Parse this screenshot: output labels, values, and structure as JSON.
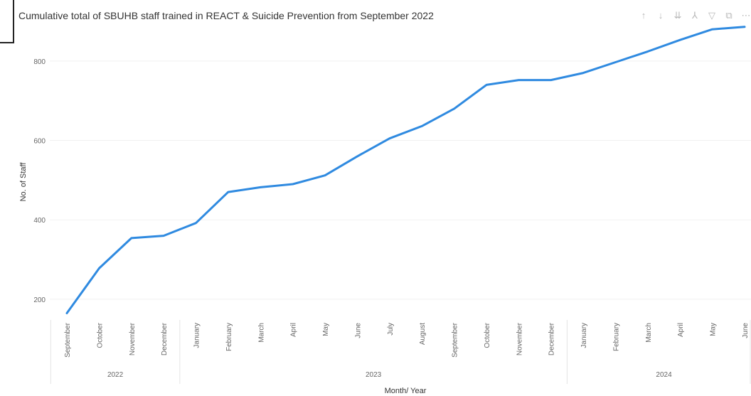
{
  "toolbar": {
    "icons": [
      "sort-ascending-icon",
      "sort-descending-icon",
      "drill-down-icon",
      "expand-hierarchy-icon",
      "filter-icon",
      "focus-mode-icon",
      "more-options-icon"
    ],
    "glyphs": [
      "↑",
      "↓",
      "⇊",
      "⅄",
      "▽",
      "⧉",
      "⋯"
    ]
  },
  "chart_data": {
    "type": "line",
    "title": "Cumulative total of SBUHB staff trained in REACT & Suicide Prevention from September 2022",
    "xlabel": "Month/ Year",
    "ylabel": "No. of Staff",
    "categories": [
      "September",
      "October",
      "November",
      "December",
      "January",
      "February",
      "March",
      "April",
      "May",
      "June",
      "July",
      "August",
      "September",
      "October",
      "November",
      "December",
      "January",
      "February",
      "March",
      "April",
      "May",
      "June"
    ],
    "years": [
      {
        "label": "2022",
        "start": 0,
        "end": 3
      },
      {
        "label": "2023",
        "start": 4,
        "end": 15
      },
      {
        "label": "2024",
        "start": 16,
        "end": 21
      }
    ],
    "series": [
      {
        "values": [
          165,
          278,
          354,
          360,
          392,
          470,
          482,
          490,
          512,
          560,
          605,
          636,
          680,
          740,
          752,
          752,
          770,
          797,
          824,
          853,
          880,
          886
        ]
      }
    ],
    "ylim": [
      130,
      900
    ],
    "yticks": [
      200,
      400,
      600,
      800
    ],
    "grid": true,
    "color": "#2f8ae0"
  }
}
